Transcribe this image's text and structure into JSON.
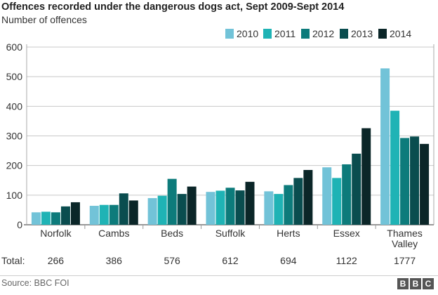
{
  "chart_data": {
    "type": "bar",
    "title": "Offences recorded under the dangerous dogs act, Sept 2009-Sept 2014",
    "subtitle": "Number of offences",
    "categories": [
      "Norfolk",
      "Cambs",
      "Beds",
      "Suffolk",
      "Herts",
      "Essex",
      "Thames Valley"
    ],
    "series": [
      {
        "name": "2010",
        "color": "#72c3d8",
        "values": [
          42,
          64,
          90,
          111,
          113,
          194,
          528
        ]
      },
      {
        "name": "2011",
        "color": "#1fb3b5",
        "values": [
          44,
          67,
          98,
          115,
          104,
          158,
          385
        ]
      },
      {
        "name": "2012",
        "color": "#0d7b7b",
        "values": [
          42,
          67,
          155,
          125,
          134,
          204,
          293
        ]
      },
      {
        "name": "2013",
        "color": "#0a4d4f",
        "values": [
          62,
          106,
          104,
          116,
          158,
          240,
          298
        ]
      },
      {
        "name": "2014",
        "color": "#0b2628",
        "values": [
          76,
          82,
          129,
          145,
          185,
          326,
          273
        ]
      }
    ],
    "ylim": [
      0,
      600
    ],
    "yticks": [
      0,
      100,
      200,
      300,
      400,
      500,
      600
    ],
    "grid": true,
    "legend_position": "top-right",
    "totals_label": "Total:",
    "totals": [
      "266",
      "386",
      "576",
      "612",
      "694",
      "1122",
      "1777"
    ]
  },
  "source": "Source: BBC FOI",
  "logo": "BBC"
}
